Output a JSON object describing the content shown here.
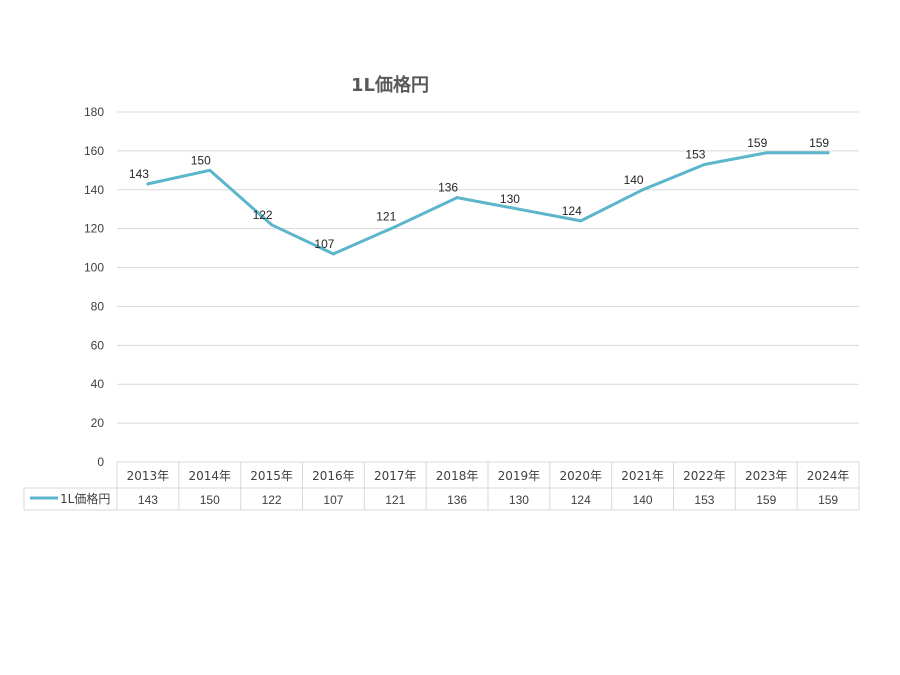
{
  "chart_data": {
    "type": "line",
    "title": "1L価格円",
    "categories": [
      "2013年",
      "2014年",
      "2015年",
      "2016年",
      "2017年",
      "2018年",
      "2019年",
      "2020年",
      "2021年",
      "2022年",
      "2023年",
      "2024年"
    ],
    "series": [
      {
        "name": "1L価格円",
        "values": [
          143,
          150,
          122,
          107,
          121,
          136,
          130,
          124,
          140,
          153,
          159,
          159
        ],
        "color": "#5BB5CB"
      }
    ],
    "ylim": [
      0,
      180
    ],
    "yticks": [
      "0",
      "20",
      "40",
      "60",
      "80",
      "100",
      "120",
      "140",
      "160",
      "180"
    ],
    "grid": true,
    "data_labels": true,
    "legend": "data-table"
  }
}
